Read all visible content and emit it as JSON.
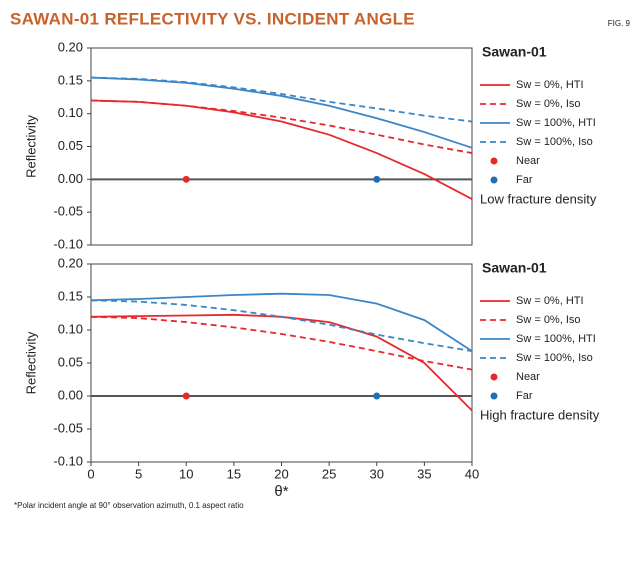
{
  "title": "SAWAN-01 REFLECTIVITY VS. INCIDENT ANGLE",
  "figure_label": "FIG. 9",
  "footnote": "*Polar incident angle at 90° observation azimuth, 0.1 aspect ratio",
  "chart_data": [
    {
      "type": "line",
      "ylabel": "Reflectivity",
      "legend_title": "Sawan-01",
      "annotation": "Low fracture density",
      "x": [
        0,
        5,
        10,
        15,
        20,
        25,
        30,
        35,
        40
      ],
      "xlim": [
        0,
        40
      ],
      "ylim": [
        -0.1,
        0.2
      ],
      "yticks": [
        {
          "value": 0.2,
          "label": "0.20"
        },
        {
          "value": 0.15,
          "label": "0.15"
        },
        {
          "value": 0.1,
          "label": "0.10"
        },
        {
          "value": 0.05,
          "label": "0.05"
        },
        {
          "value": 0,
          "label": "0.00"
        },
        {
          "value": -0.05,
          "label": "-0.05"
        },
        {
          "value": -0.1,
          "label": "-0.10"
        }
      ],
      "zero_line": true,
      "series": [
        {
          "name": "Sw = 0%, HTI",
          "color": "#e8282b",
          "dashed": false,
          "values": [
            0.12,
            0.118,
            0.112,
            0.102,
            0.088,
            0.068,
            0.04,
            0.008,
            -0.03
          ]
        },
        {
          "name": "Sw = 0%, Iso",
          "color": "#e8282b",
          "dashed": true,
          "values": [
            0.12,
            0.118,
            0.112,
            0.104,
            0.094,
            0.082,
            0.068,
            0.053,
            0.04
          ]
        },
        {
          "name": "Sw = 100%, HTI",
          "color": "#3a86c8",
          "dashed": false,
          "values": [
            0.155,
            0.152,
            0.147,
            0.138,
            0.127,
            0.112,
            0.093,
            0.072,
            0.048
          ]
        },
        {
          "name": "Sw = 100%, Iso",
          "color": "#3a86c8",
          "dashed": true,
          "values": [
            0.155,
            0.153,
            0.148,
            0.14,
            0.13,
            0.118,
            0.108,
            0.097,
            0.088
          ]
        },
        {
          "name": "Near",
          "color": "#e8282b",
          "marker": true,
          "x": [
            10
          ],
          "values": [
            0
          ]
        },
        {
          "name": "Far",
          "color": "#1f6fb8",
          "marker": true,
          "x": [
            30
          ],
          "values": [
            0
          ]
        }
      ]
    },
    {
      "type": "line",
      "ylabel": "Reflectivity",
      "xlabel": "θ*",
      "legend_title": "Sawan-01",
      "annotation": "High fracture density",
      "x": [
        0,
        5,
        10,
        15,
        20,
        25,
        30,
        35,
        40
      ],
      "xlim": [
        0,
        40
      ],
      "ylim": [
        -0.1,
        0.2
      ],
      "xticks": [
        0,
        5,
        10,
        15,
        20,
        25,
        30,
        35,
        40
      ],
      "yticks": [
        {
          "value": 0.2,
          "label": "0.20"
        },
        {
          "value": 0.15,
          "label": "0.15"
        },
        {
          "value": 0.1,
          "label": "0.10"
        },
        {
          "value": 0.05,
          "label": "0.05"
        },
        {
          "value": 0,
          "label": "0.00"
        },
        {
          "value": -0.05,
          "label": "-0.05"
        },
        {
          "value": -0.1,
          "label": "-0.10"
        }
      ],
      "zero_line": true,
      "series": [
        {
          "name": "Sw = 0%, HTI",
          "color": "#e8282b",
          "dashed": false,
          "values": [
            0.12,
            0.121,
            0.122,
            0.123,
            0.12,
            0.112,
            0.09,
            0.05,
            -0.022
          ]
        },
        {
          "name": "Sw = 0%, Iso",
          "color": "#e8282b",
          "dashed": true,
          "values": [
            0.12,
            0.118,
            0.112,
            0.104,
            0.094,
            0.082,
            0.068,
            0.053,
            0.04
          ]
        },
        {
          "name": "Sw = 100%, HTI",
          "color": "#3a86c8",
          "dashed": false,
          "values": [
            0.145,
            0.147,
            0.15,
            0.153,
            0.155,
            0.153,
            0.14,
            0.115,
            0.068
          ]
        },
        {
          "name": "Sw = 100%, Iso",
          "color": "#3a86c8",
          "dashed": true,
          "values": [
            0.145,
            0.143,
            0.138,
            0.13,
            0.12,
            0.108,
            0.093,
            0.08,
            0.068
          ]
        },
        {
          "name": "Near",
          "color": "#e8282b",
          "marker": true,
          "x": [
            10
          ],
          "values": [
            0
          ]
        },
        {
          "name": "Far",
          "color": "#1f6fb8",
          "marker": true,
          "x": [
            30
          ],
          "values": [
            0
          ]
        }
      ]
    }
  ]
}
